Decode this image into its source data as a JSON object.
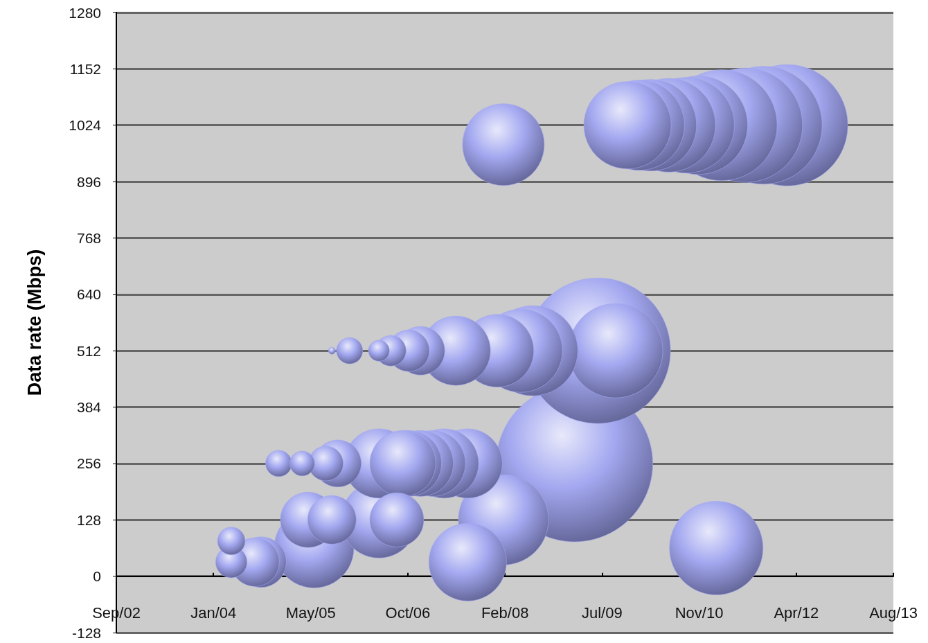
{
  "chart_data": {
    "type": "bubble",
    "ylabel": "Data rate (Mbps)",
    "x": [
      "2008-02",
      "2009-11",
      "2010-01",
      "2010-03",
      "2010-06",
      "2010-09",
      "2010-11",
      "2011-03",
      "2011-07",
      "2011-10",
      "2012-02",
      "2005-09",
      "2005-12",
      "2006-05",
      "2006-07",
      "2006-10",
      "2006-12",
      "2007-06",
      "2008-01",
      "2008-05",
      "2008-07",
      "2009-06",
      "2009-09",
      "2004-12",
      "2005-04",
      "2005-08",
      "2005-10",
      "2006-05",
      "2006-09",
      "2006-10",
      "2006-12",
      "2007-02",
      "2007-04",
      "2007-08",
      "2009-02",
      "2005-05",
      "2005-09",
      "2006-05",
      "2006-08",
      "2008-02",
      "2004-04",
      "2004-04",
      "2004-08",
      "2004-09",
      "2005-06",
      "2007-08",
      "2011-02"
    ],
    "values": [
      980,
      1024,
      1024,
      1024,
      1024,
      1024,
      1024,
      1024,
      1024,
      1024,
      1024,
      512,
      512,
      512,
      512,
      512,
      512,
      512,
      512,
      512,
      512,
      512,
      512,
      256,
      256,
      256,
      256,
      256,
      256,
      256,
      256,
      256,
      256,
      256,
      256,
      128,
      128,
      128,
      128,
      128,
      80,
      32,
      32,
      32,
      64,
      32,
      64
    ],
    "sizes": [
      0.273,
      0.311,
      0.331,
      0.341,
      0.357,
      0.373,
      0.395,
      0.501,
      0.533,
      0.566,
      0.6,
      0.002,
      0.028,
      0.018,
      0.038,
      0.07,
      0.096,
      0.196,
      0.216,
      0.282,
      0.331,
      0.863,
      0.362,
      0.028,
      0.025,
      0.049,
      0.09,
      0.196,
      0.177,
      0.177,
      0.177,
      0.177,
      0.196,
      0.196,
      1,
      0.125,
      0.096,
      0.237,
      0.119,
      0.331,
      0.031,
      0.04,
      0.096,
      0.104,
      0.259,
      0.246,
      0.357
    ],
    "color": "#a3a8f0",
    "marker": "circle",
    "grid": "y",
    "xlim": [
      "2002-09-01",
      "2013-08-15"
    ],
    "xticks": [
      {
        "value": "2002-09-01",
        "label": "Sep/02"
      },
      {
        "value": "2004-01-14",
        "label": "Jan/04"
      },
      {
        "value": "2005-05-29",
        "label": "May/05"
      },
      {
        "value": "2006-10-11",
        "label": "Oct/06"
      },
      {
        "value": "2008-02-23",
        "label": "Feb/08"
      },
      {
        "value": "2009-07-07",
        "label": "Jul/09"
      },
      {
        "value": "2010-11-19",
        "label": "Nov/10"
      },
      {
        "value": "2012-04-02",
        "label": "Apr/12"
      },
      {
        "value": "2013-08-15",
        "label": "Aug/13"
      }
    ],
    "ylim": [
      -128,
      1280
    ],
    "yticks": [
      -128,
      0,
      128,
      256,
      384,
      512,
      640,
      768,
      896,
      1024,
      1152,
      1280
    ]
  }
}
